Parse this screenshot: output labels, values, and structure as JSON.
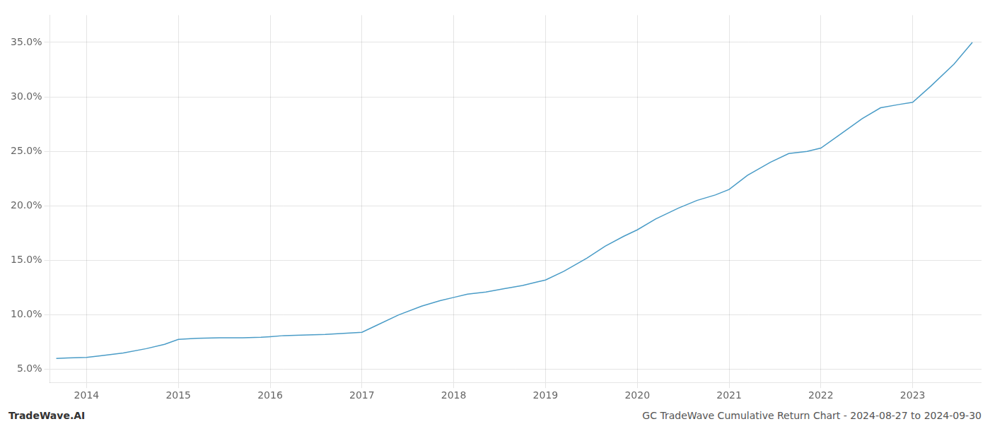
{
  "chart_data": {
    "type": "line",
    "x": [
      2013.67,
      2013.8,
      2014.0,
      2014.15,
      2014.4,
      2014.65,
      2014.85,
      2015.0,
      2015.2,
      2015.45,
      2015.7,
      2015.9,
      2016.0,
      2016.15,
      2016.4,
      2016.6,
      2016.8,
      2017.0,
      2017.15,
      2017.4,
      2017.65,
      2017.85,
      2018.0,
      2018.15,
      2018.35,
      2018.55,
      2018.75,
      2018.9,
      2019.0,
      2019.2,
      2019.45,
      2019.65,
      2019.85,
      2020.0,
      2020.2,
      2020.45,
      2020.65,
      2020.85,
      2021.0,
      2021.2,
      2021.45,
      2021.65,
      2021.85,
      2022.0,
      2022.2,
      2022.45,
      2022.65,
      2022.85,
      2023.0,
      2023.2,
      2023.45,
      2023.65
    ],
    "values": [
      6.0,
      6.05,
      6.1,
      6.25,
      6.5,
      6.9,
      7.3,
      7.75,
      7.85,
      7.9,
      7.9,
      7.95,
      8.0,
      8.1,
      8.15,
      8.2,
      8.3,
      8.4,
      9.0,
      10.0,
      10.8,
      11.3,
      11.6,
      11.9,
      12.1,
      12.4,
      12.7,
      13.0,
      13.2,
      14.0,
      15.2,
      16.3,
      17.2,
      17.8,
      18.8,
      19.8,
      20.5,
      21.0,
      21.5,
      22.8,
      24.0,
      24.8,
      25.0,
      25.3,
      26.5,
      28.0,
      29.0,
      29.3,
      29.5,
      31.0,
      33.0,
      35.0
    ],
    "color": "#4a9cc7",
    "xlim": [
      2013.6,
      2023.75
    ],
    "xticks": [
      2014,
      2015,
      2016,
      2017,
      2018,
      2019,
      2020,
      2021,
      2022,
      2023
    ],
    "ylim": [
      3.8,
      37.5
    ],
    "yticks": [
      {
        "value": 5.0,
        "label": "5.0%"
      },
      {
        "value": 10.0,
        "label": "10.0%"
      },
      {
        "value": 15.0,
        "label": "15.0%"
      },
      {
        "value": 20.0,
        "label": "20.0%"
      },
      {
        "value": 25.0,
        "label": "25.0%"
      },
      {
        "value": 30.0,
        "label": "30.0%"
      },
      {
        "value": 35.0,
        "label": "35.0%"
      }
    ],
    "grid": true,
    "annotations": [
      "TradeWave.AI",
      "GC TradeWave Cumulative Return Chart - 2024-08-27 to 2024-09-30"
    ]
  }
}
